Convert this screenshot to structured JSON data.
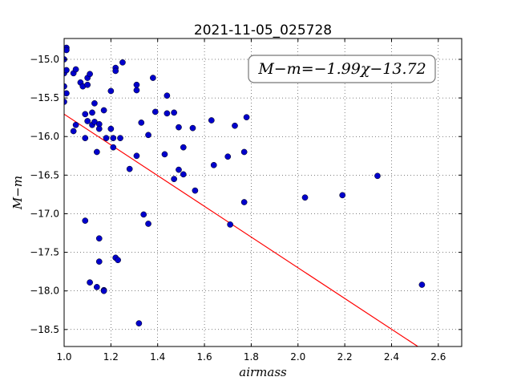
{
  "chart_data": {
    "type": "scatter",
    "title": "2021-11-05_025728",
    "xlabel": "airmass",
    "ylabel": "M−m",
    "xlim": [
      1.0,
      2.7
    ],
    "ylim": [
      -18.72,
      -14.73
    ],
    "y_inverted": true,
    "grid": true,
    "x_ticks": [
      1.0,
      1.2,
      1.4,
      1.6,
      1.8,
      2.0,
      2.2,
      2.4,
      2.6
    ],
    "x_tick_labels": [
      "1.0",
      "1.2",
      "1.4",
      "1.6",
      "1.8",
      "2.0",
      "2.2",
      "2.4",
      "2.6"
    ],
    "y_ticks": [
      -15.0,
      -15.5,
      -16.0,
      -16.5,
      -17.0,
      -17.5,
      -18.0,
      -18.5
    ],
    "y_tick_labels": [
      "−15.0",
      "−15.5",
      "−16.0",
      "−16.5",
      "−17.0",
      "−17.5",
      "−18.0",
      "−18.5"
    ],
    "annotation": "M−m=−1.99χ−13.72",
    "annotation_position": "top-right",
    "fit_line": {
      "slope": -1.99,
      "intercept": -13.72,
      "color": "#ff0000"
    },
    "point_color": "#0000cc",
    "points": [
      [
        1.0,
        -15.0
      ],
      [
        1.0,
        -15.18
      ],
      [
        1.01,
        -14.85
      ],
      [
        1.01,
        -14.88
      ],
      [
        1.01,
        -15.14
      ],
      [
        1.0,
        -15.35
      ],
      [
        1.01,
        -15.44
      ],
      [
        1.0,
        -15.55
      ],
      [
        1.04,
        -15.18
      ],
      [
        1.05,
        -15.13
      ],
      [
        1.04,
        -15.93
      ],
      [
        1.05,
        -15.85
      ],
      [
        1.07,
        -15.3
      ],
      [
        1.08,
        -15.35
      ],
      [
        1.1,
        -15.33
      ],
      [
        1.1,
        -15.24
      ],
      [
        1.11,
        -15.19
      ],
      [
        1.09,
        -15.71
      ],
      [
        1.1,
        -15.8
      ],
      [
        1.09,
        -16.02
      ],
      [
        1.12,
        -15.85
      ],
      [
        1.13,
        -15.81
      ],
      [
        1.13,
        -15.57
      ],
      [
        1.12,
        -15.69
      ],
      [
        1.15,
        -15.84
      ],
      [
        1.15,
        -15.9
      ],
      [
        1.17,
        -15.66
      ],
      [
        1.18,
        -16.02
      ],
      [
        1.14,
        -16.2
      ],
      [
        1.2,
        -15.41
      ],
      [
        1.2,
        -15.9
      ],
      [
        1.21,
        -16.02
      ],
      [
        1.22,
        -15.11
      ],
      [
        1.22,
        -15.15
      ],
      [
        1.21,
        -16.14
      ],
      [
        1.24,
        -16.02
      ],
      [
        1.25,
        -15.04
      ],
      [
        1.28,
        -16.42
      ],
      [
        1.31,
        -15.4
      ],
      [
        1.31,
        -15.33
      ],
      [
        1.31,
        -16.25
      ],
      [
        1.33,
        -15.82
      ],
      [
        1.36,
        -15.98
      ],
      [
        1.38,
        -15.24
      ],
      [
        1.39,
        -15.68
      ],
      [
        1.44,
        -15.47
      ],
      [
        1.44,
        -15.7
      ],
      [
        1.47,
        -15.69
      ],
      [
        1.43,
        -16.23
      ],
      [
        1.49,
        -15.88
      ],
      [
        1.51,
        -16.14
      ],
      [
        1.49,
        -16.43
      ],
      [
        1.47,
        -16.55
      ],
      [
        1.51,
        -16.49
      ],
      [
        1.55,
        -15.89
      ],
      [
        1.56,
        -16.7
      ],
      [
        1.63,
        -15.79
      ],
      [
        1.64,
        -16.37
      ],
      [
        1.7,
        -16.26
      ],
      [
        1.73,
        -15.86
      ],
      [
        1.77,
        -16.2
      ],
      [
        1.78,
        -15.75
      ],
      [
        1.77,
        -16.85
      ],
      [
        1.71,
        -17.14
      ],
      [
        2.03,
        -16.79
      ],
      [
        2.19,
        -16.76
      ],
      [
        2.34,
        -16.51
      ],
      [
        2.53,
        -17.92
      ],
      [
        1.09,
        -17.09
      ],
      [
        1.15,
        -17.32
      ],
      [
        1.15,
        -17.62
      ],
      [
        1.11,
        -17.89
      ],
      [
        1.14,
        -17.95
      ],
      [
        1.17,
        -17.99
      ],
      [
        1.17,
        -18.0
      ],
      [
        1.22,
        -17.57
      ],
      [
        1.23,
        -17.6
      ],
      [
        1.34,
        -17.01
      ],
      [
        1.36,
        -17.13
      ],
      [
        1.32,
        -18.42
      ]
    ]
  }
}
